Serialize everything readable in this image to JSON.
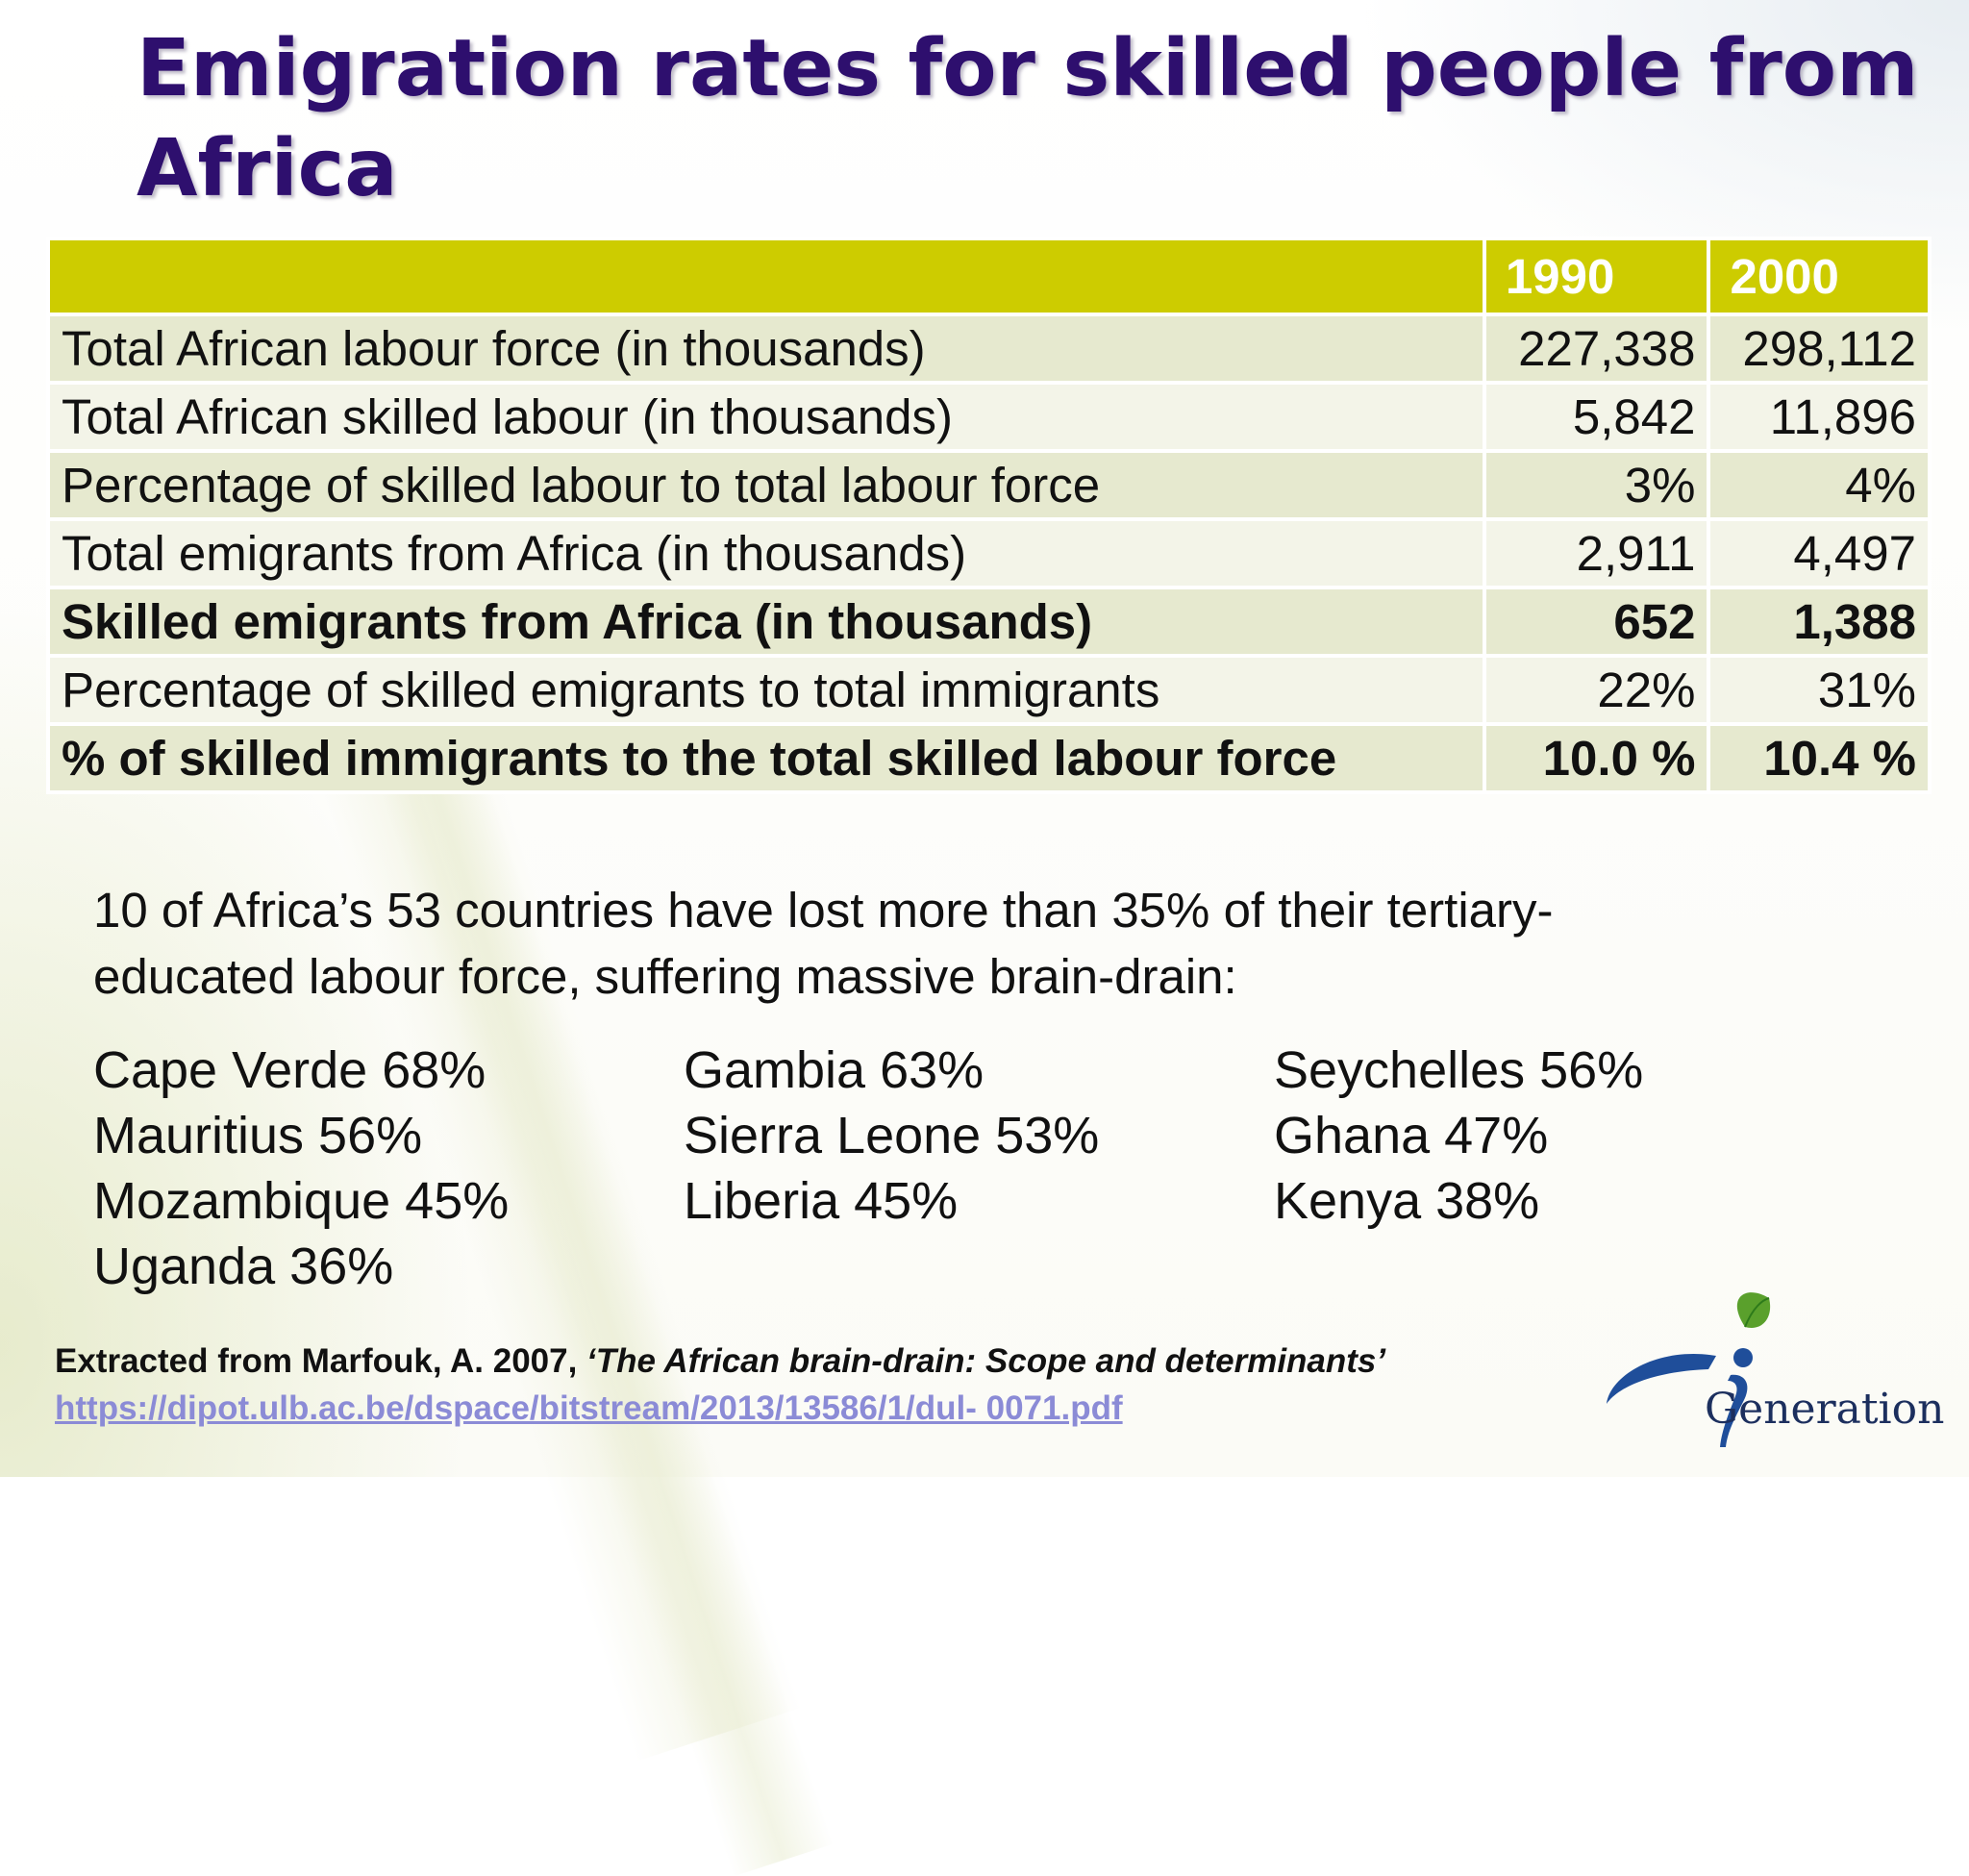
{
  "title": "Emigration rates for skilled people from Africa",
  "table": {
    "headers": [
      "",
      "1990",
      "2000"
    ],
    "rows": [
      {
        "label": "Total African labour force (in thousands)",
        "y1990": "227,338",
        "y2000": "298,112",
        "bold": false
      },
      {
        "label": "Total African skilled labour (in thousands)",
        "y1990": "5,842",
        "y2000": "11,896",
        "bold": false
      },
      {
        "label": "Percentage of skilled labour to total labour force",
        "y1990": "3%",
        "y2000": "4%",
        "bold": false
      },
      {
        "label": "Total emigrants from Africa (in thousands)",
        "y1990": "2,911",
        "y2000": "4,497",
        "bold": false
      },
      {
        "label": "Skilled emigrants from Africa (in thousands)",
        "y1990": "652",
        "y2000": "1,388",
        "bold": true
      },
      {
        "label": "Percentage of skilled emigrants to total immigrants",
        "y1990": "22%",
        "y2000": "31%",
        "bold": false
      },
      {
        "label": "% of skilled immigrants to the total skilled labour force",
        "y1990": "10.0 %",
        "y2000": "10.4 %",
        "bold": true
      }
    ]
  },
  "note": {
    "line1": "10 of  Africa’s 53 countries have lost more than 35% of their tertiary-",
    "line2": "educated labour force,  suffering massive brain-drain:"
  },
  "countries": {
    "col1": [
      "Cape Verde 68%",
      "Mauritius 56%",
      "Mozambique 45%",
      "Uganda 36%"
    ],
    "col2": [
      "Gambia 63%",
      "Sierra Leone 53%",
      "Liberia 45%"
    ],
    "col3": [
      "Seychelles 56%",
      "Ghana 47%",
      "Kenya 38%"
    ]
  },
  "citation": {
    "prefix": "Extracted from Marfouk, A. 2007, ",
    "title": "‘The African brain-drain: Scope and determinants’",
    "url": "https://dipot.ulb.ac.be/dspace/bitstream/2013/13586/1/dul- 0071.pdf"
  },
  "logo": {
    "text": "Generation",
    "icon": "leaf-figure-logo",
    "colors": {
      "leaf": "#5aa02c",
      "figure": "#1f4e9a",
      "text": "#1c2f5e"
    }
  },
  "colors": {
    "title": "#2e0f6e",
    "header_bg": "#cdcc00",
    "row_odd": "#e6e9cf",
    "row_even": "#f3f4e8",
    "link": "#8b8bd6"
  }
}
